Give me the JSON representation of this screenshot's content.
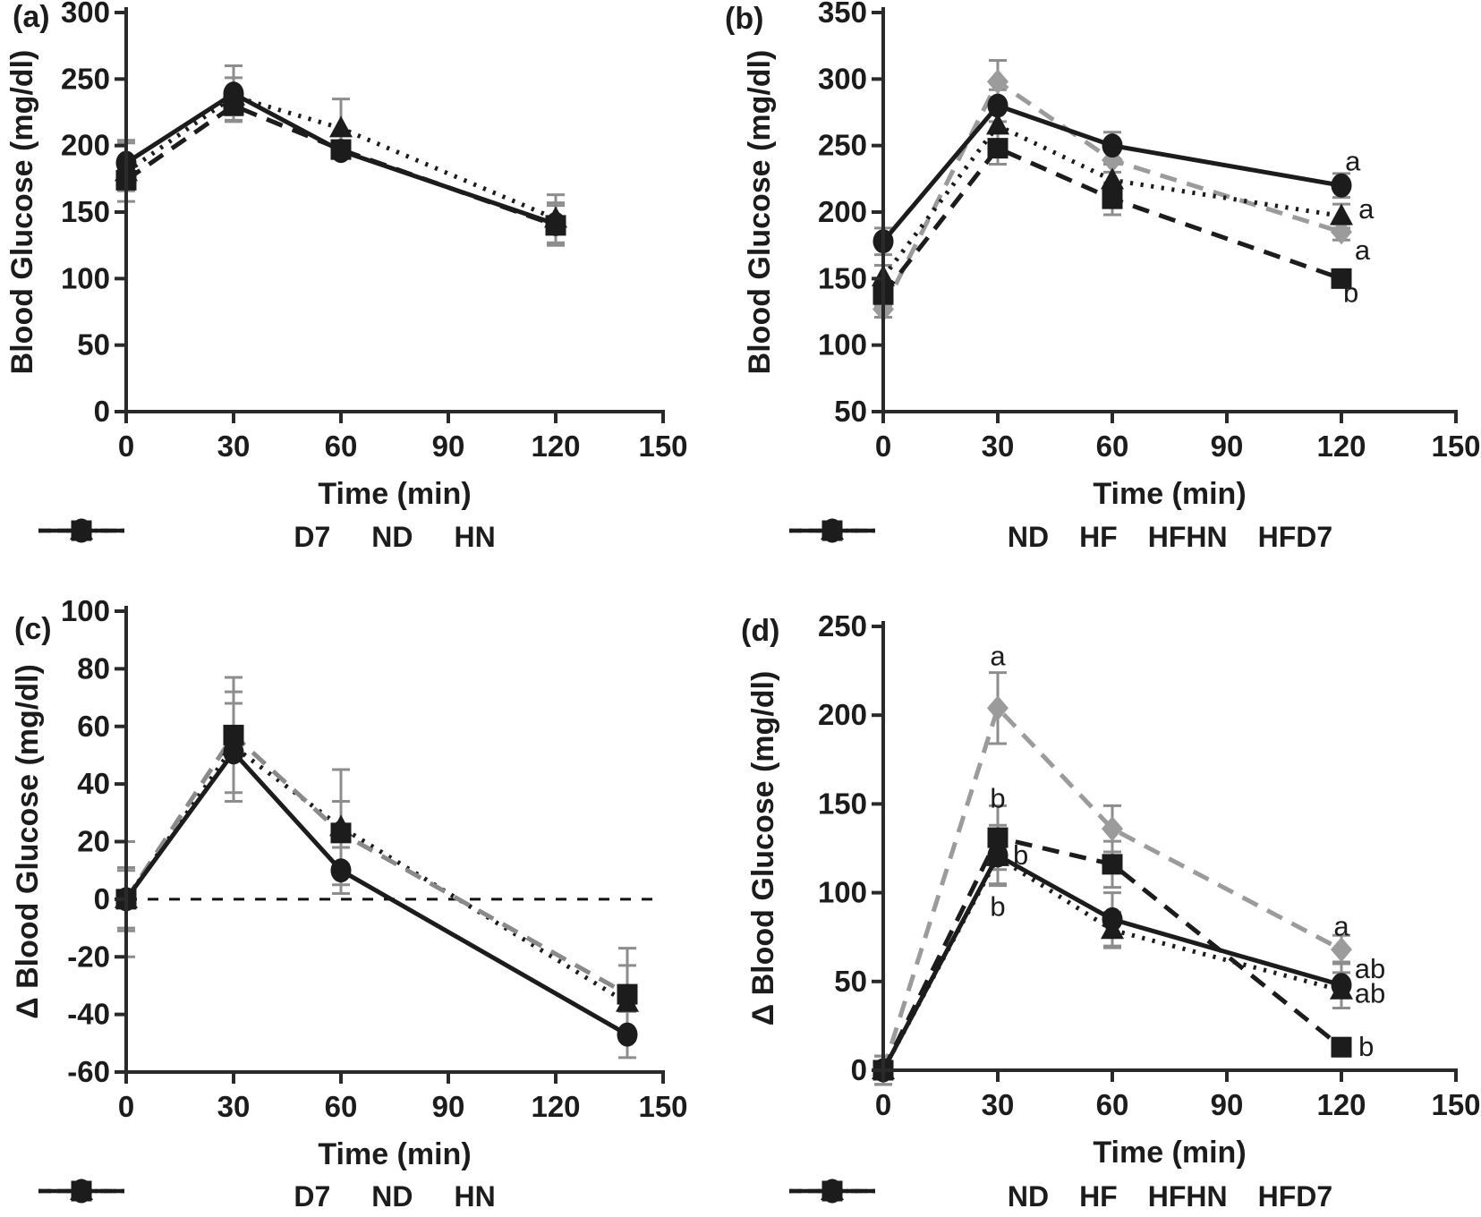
{
  "colors": {
    "black": "#1c1c1c",
    "gray": "#9b9b9b",
    "error_bar": "#8d8d8d",
    "background": "#ffffff"
  },
  "chart_data": [
    {
      "type": "line",
      "panel_label": "(a)",
      "xlabel": "Time (min)",
      "ylabel": "Blood Glucose (mg/dl)",
      "xlim": [
        0,
        150
      ],
      "xticks": [
        0,
        30,
        60,
        90,
        120,
        150
      ],
      "ylim": [
        0,
        300
      ],
      "yticks": [
        300,
        250,
        200,
        150,
        100,
        50,
        0
      ],
      "zero_line": false,
      "series": [
        {
          "name": "D7",
          "marker": "triangle",
          "line": "dotted",
          "color": "#1c1c1c",
          "x": [
            0,
            30,
            60,
            120
          ],
          "y": [
            180,
            237,
            213,
            145
          ],
          "err": [
            22,
            14,
            22,
            18
          ]
        },
        {
          "name": "ND",
          "marker": "square",
          "line": "dashed",
          "color": "#1c1c1c",
          "x": [
            0,
            30,
            60,
            120
          ],
          "y": [
            174,
            230,
            197,
            140
          ],
          "err": [
            8,
            11,
            6,
            15
          ]
        },
        {
          "name": "HN",
          "marker": "circle",
          "line": "solid",
          "color": "#1c1c1c",
          "x": [
            0,
            30,
            60,
            120
          ],
          "y": [
            187,
            239,
            196,
            141
          ],
          "err": [
            17,
            21,
            5,
            16
          ]
        }
      ],
      "annotations": [],
      "legend": [
        {
          "label": "D7",
          "marker": "triangle",
          "line": "dotted",
          "color": "#1c1c1c"
        },
        {
          "label": "ND",
          "marker": "square",
          "line": "dashed",
          "color": "#1c1c1c"
        },
        {
          "label": "HN",
          "marker": "circle",
          "line": "solid",
          "color": "#1c1c1c"
        }
      ]
    },
    {
      "type": "line",
      "panel_label": "(b)",
      "xlabel": "Time (min)",
      "ylabel": "Blood Glucose (mg/dl)",
      "xlim": [
        0,
        150
      ],
      "xticks": [
        0,
        30,
        60,
        90,
        120,
        150
      ],
      "ylim": [
        50,
        350
      ],
      "yticks": [
        350,
        300,
        250,
        200,
        150,
        100,
        50
      ],
      "zero_line": false,
      "series": [
        {
          "name": "HF",
          "marker": "diamond",
          "line": "dashed",
          "color": "#9b9b9b",
          "x": [
            0,
            30,
            60,
            120
          ],
          "y": [
            127,
            298,
            239,
            185
          ],
          "err": [
            6,
            16,
            9,
            6
          ]
        },
        {
          "name": "ND",
          "marker": "square",
          "line": "dashed",
          "color": "#1c1c1c",
          "x": [
            0,
            30,
            60,
            120
          ],
          "y": [
            138,
            248,
            210,
            150
          ],
          "err": [
            8,
            12,
            12,
            6
          ]
        },
        {
          "name": "HFD7",
          "marker": "triangle",
          "line": "dotted",
          "color": "#1c1c1c",
          "x": [
            0,
            30,
            60,
            120
          ],
          "y": [
            151,
            265,
            224,
            197
          ],
          "err": [
            9,
            14,
            12,
            9
          ]
        },
        {
          "name": "HFHN",
          "marker": "circle",
          "line": "solid",
          "color": "#1c1c1c",
          "x": [
            0,
            30,
            60,
            120
          ],
          "y": [
            178,
            280,
            250,
            220
          ],
          "err": [
            10,
            12,
            10,
            9
          ]
        }
      ],
      "annotations": [
        {
          "text": "a",
          "x": 123,
          "y": 238
        },
        {
          "text": "a",
          "x": 126.5,
          "y": 202
        },
        {
          "text": "a",
          "x": 125.5,
          "y": 171
        },
        {
          "text": "b",
          "x": 122.5,
          "y": 139
        }
      ],
      "legend": [
        {
          "label": "ND",
          "marker": "square",
          "line": "dashed",
          "color": "#1c1c1c"
        },
        {
          "label": "HF",
          "marker": "diamond",
          "line": "dashed",
          "color": "#9b9b9b"
        },
        {
          "label": "HFHN",
          "marker": "circle",
          "line": "solid",
          "color": "#1c1c1c"
        },
        {
          "label": "HFD7",
          "marker": "triangle",
          "line": "dotted",
          "color": "#1c1c1c"
        }
      ]
    },
    {
      "type": "line",
      "panel_label": "(c)",
      "xlabel": "Time (min)",
      "ylabel": "Δ Blood Glucose (mg/dl)",
      "xlim": [
        0,
        150
      ],
      "xticks": [
        0,
        30,
        60,
        90,
        120,
        150
      ],
      "ylim": [
        -60,
        100
      ],
      "yticks": [
        100,
        80,
        60,
        40,
        20,
        0,
        -20,
        -40,
        -60
      ],
      "zero_line": true,
      "series": [
        {
          "name": "D7",
          "marker": "triangle",
          "line": "dotted",
          "color": "#1c1c1c",
          "x": [
            0,
            30,
            60,
            140
          ],
          "y": [
            0,
            53,
            25,
            -36
          ],
          "err": [
            11,
            19,
            20,
            13
          ]
        },
        {
          "name": "ND",
          "marker": "square",
          "line": "dashed",
          "color": "#1c1c1c",
          "line_color": "#8a8a8a",
          "x": [
            0,
            30,
            60,
            140
          ],
          "y": [
            0,
            57,
            23,
            -33
          ],
          "err": [
            20,
            20,
            11,
            16
          ]
        },
        {
          "name": "HN",
          "marker": "circle",
          "line": "solid",
          "color": "#1c1c1c",
          "x": [
            0,
            30,
            60,
            140
          ],
          "y": [
            0,
            51,
            10,
            -47
          ],
          "err": [
            10,
            17,
            8,
            8
          ]
        }
      ],
      "annotations": [],
      "legend": [
        {
          "label": "D7",
          "marker": "triangle",
          "line": "dotted",
          "color": "#1c1c1c"
        },
        {
          "label": "ND",
          "marker": "square",
          "line": "dashed",
          "color": "#1c1c1c"
        },
        {
          "label": "HN",
          "marker": "circle",
          "line": "solid",
          "color": "#1c1c1c"
        }
      ]
    },
    {
      "type": "line",
      "panel_label": "(d)",
      "xlabel": "Time (min)",
      "ylabel": "Δ Blood Glucose (mg/dl)",
      "xlim": [
        0,
        150
      ],
      "xticks": [
        0,
        30,
        60,
        90,
        120,
        150
      ],
      "ylim": [
        0,
        250
      ],
      "yticks": [
        250,
        200,
        150,
        100,
        50,
        0
      ],
      "zero_line": false,
      "series": [
        {
          "name": "HF",
          "marker": "diamond",
          "line": "dashed",
          "color": "#9b9b9b",
          "x": [
            0,
            30,
            60,
            120
          ],
          "y": [
            0,
            204,
            136,
            68
          ],
          "err": [
            8,
            20,
            13,
            8
          ]
        },
        {
          "name": "HFD7",
          "marker": "triangle",
          "line": "dotted",
          "color": "#1c1c1c",
          "x": [
            0,
            30,
            60,
            120
          ],
          "y": [
            0,
            120,
            79,
            45
          ],
          "err": [
            8,
            15,
            10,
            10
          ]
        },
        {
          "name": "HFHN",
          "marker": "circle",
          "line": "solid",
          "color": "#1c1c1c",
          "x": [
            0,
            30,
            60,
            120
          ],
          "y": [
            0,
            121,
            85,
            48
          ],
          "err": [
            8,
            17,
            15,
            13
          ]
        },
        {
          "name": "ND",
          "marker": "square",
          "line": "dashed",
          "color": "#1c1c1c",
          "x": [
            0,
            30,
            60,
            120
          ],
          "y": [
            0,
            131,
            116,
            13
          ],
          "err": [
            8,
            18,
            13,
            5
          ]
        }
      ],
      "annotations": [
        {
          "text": "a",
          "x": 30,
          "y": 233
        },
        {
          "text": "b",
          "x": 30,
          "y": 153
        },
        {
          "text": "b",
          "x": 36,
          "y": 121
        },
        {
          "text": "b",
          "x": 30,
          "y": 92
        },
        {
          "text": "a",
          "x": 120,
          "y": 81
        },
        {
          "text": "ab",
          "x": 127.5,
          "y": 57
        },
        {
          "text": "ab",
          "x": 127.5,
          "y": 43
        },
        {
          "text": "b",
          "x": 126.5,
          "y": 13
        }
      ],
      "legend": [
        {
          "label": "ND",
          "marker": "square",
          "line": "dashed",
          "color": "#1c1c1c"
        },
        {
          "label": "HF",
          "marker": "diamond",
          "line": "dashed",
          "color": "#9b9b9b"
        },
        {
          "label": "HFHN",
          "marker": "circle",
          "line": "solid",
          "color": "#1c1c1c"
        },
        {
          "label": "HFD7",
          "marker": "triangle",
          "line": "dotted",
          "color": "#1c1c1c"
        }
      ]
    }
  ]
}
